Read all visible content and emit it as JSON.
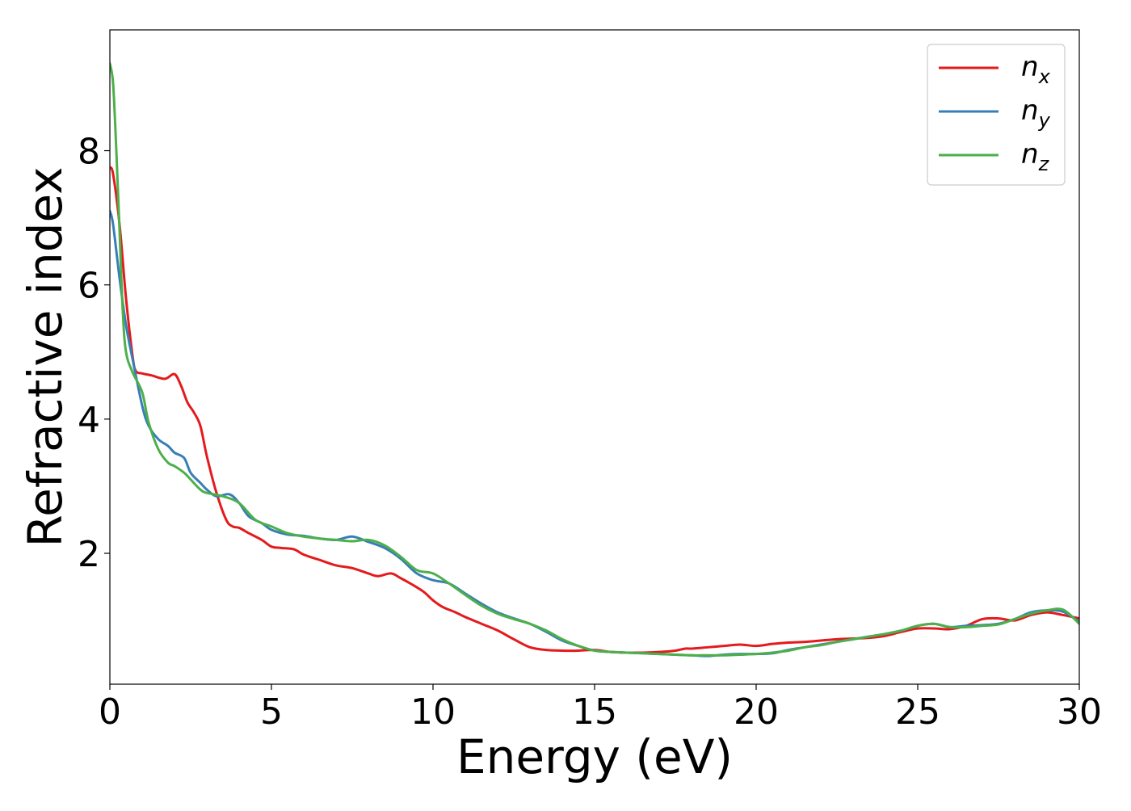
{
  "chart_data": {
    "type": "line",
    "title": "",
    "xlabel": "Energy (eV)",
    "ylabel": "Refractive index",
    "xlim": [
      0,
      30
    ],
    "ylim": [
      0.05,
      9.8
    ],
    "xticks": [
      0,
      5,
      10,
      15,
      20,
      25,
      30
    ],
    "yticks": [
      2,
      4,
      6,
      8
    ],
    "grid": false,
    "legend_position": "top-right",
    "series": [
      {
        "name": "n_x",
        "label_base": "n",
        "label_sub": "x",
        "color": "#e41a1c",
        "x": [
          0,
          0.1,
          0.3,
          0.5,
          0.7,
          0.8,
          1.0,
          1.3,
          1.7,
          2.0,
          2.2,
          2.4,
          2.6,
          2.8,
          3.0,
          3.3,
          3.6,
          3.8,
          4.0,
          4.3,
          4.7,
          5.0,
          5.3,
          5.7,
          6.0,
          6.5,
          7.0,
          7.5,
          8.0,
          8.3,
          8.7,
          9.0,
          9.3,
          9.7,
          10.0,
          10.3,
          10.7,
          11.0,
          11.5,
          12.0,
          12.5,
          13.0,
          13.5,
          14.0,
          14.5,
          15.0,
          15.5,
          16.0,
          16.5,
          17.0,
          17.5,
          17.8,
          18.0,
          18.5,
          19.0,
          19.5,
          20.0,
          20.5,
          21.0,
          21.5,
          22.0,
          22.5,
          23.0,
          23.5,
          24.0,
          24.5,
          25.0,
          25.5,
          26.0,
          26.5,
          27.0,
          27.5,
          28.0,
          28.5,
          29.0,
          29.5,
          30.0
        ],
        "y": [
          7.75,
          7.65,
          6.9,
          5.8,
          4.95,
          4.72,
          4.68,
          4.65,
          4.6,
          4.67,
          4.5,
          4.25,
          4.1,
          3.9,
          3.45,
          2.9,
          2.5,
          2.4,
          2.38,
          2.3,
          2.2,
          2.1,
          2.08,
          2.06,
          1.98,
          1.9,
          1.82,
          1.78,
          1.7,
          1.66,
          1.7,
          1.63,
          1.55,
          1.43,
          1.3,
          1.2,
          1.12,
          1.05,
          0.95,
          0.85,
          0.72,
          0.6,
          0.56,
          0.55,
          0.55,
          0.56,
          0.53,
          0.52,
          0.52,
          0.53,
          0.55,
          0.58,
          0.58,
          0.6,
          0.62,
          0.64,
          0.62,
          0.65,
          0.67,
          0.68,
          0.7,
          0.72,
          0.73,
          0.74,
          0.77,
          0.83,
          0.88,
          0.88,
          0.87,
          0.92,
          1.02,
          1.03,
          1.0,
          1.08,
          1.12,
          1.08,
          1.03
        ]
      },
      {
        "name": "n_y",
        "label_base": "n",
        "label_sub": "y",
        "color": "#377eb8",
        "x": [
          0,
          0.1,
          0.3,
          0.5,
          0.7,
          1.0,
          1.2,
          1.5,
          1.8,
          2.0,
          2.3,
          2.5,
          2.8,
          3.0,
          3.3,
          3.7,
          4.0,
          4.3,
          4.7,
          5.0,
          5.5,
          6.0,
          6.5,
          7.0,
          7.5,
          8.0,
          8.5,
          9.0,
          9.5,
          10.0,
          10.5,
          11.0,
          11.5,
          12.0,
          12.5,
          13.0,
          13.5,
          14.0,
          14.5,
          15.0,
          15.5,
          16.0,
          16.5,
          17.0,
          17.5,
          18.0,
          18.5,
          19.0,
          19.5,
          20.0,
          20.5,
          21.0,
          21.5,
          22.0,
          22.5,
          23.0,
          23.5,
          24.0,
          24.5,
          25.0,
          25.5,
          26.0,
          26.5,
          27.0,
          27.5,
          28.0,
          28.5,
          29.0,
          29.5,
          30.0
        ],
        "y": [
          7.1,
          6.9,
          6.1,
          5.4,
          4.9,
          4.2,
          3.9,
          3.7,
          3.6,
          3.5,
          3.42,
          3.2,
          3.05,
          2.95,
          2.85,
          2.88,
          2.75,
          2.55,
          2.45,
          2.35,
          2.28,
          2.26,
          2.22,
          2.2,
          2.25,
          2.17,
          2.08,
          1.92,
          1.7,
          1.6,
          1.55,
          1.4,
          1.25,
          1.12,
          1.03,
          0.95,
          0.83,
          0.7,
          0.62,
          0.55,
          0.53,
          0.52,
          0.51,
          0.5,
          0.49,
          0.48,
          0.47,
          0.49,
          0.5,
          0.5,
          0.51,
          0.56,
          0.6,
          0.64,
          0.68,
          0.72,
          0.76,
          0.8,
          0.85,
          0.92,
          0.95,
          0.9,
          0.92,
          0.93,
          0.95,
          1.02,
          1.12,
          1.15,
          1.13,
          0.98
        ]
      },
      {
        "name": "n_z",
        "label_base": "n",
        "label_sub": "z",
        "color": "#4daf4a",
        "x": [
          0,
          0.1,
          0.2,
          0.3,
          0.4,
          0.5,
          0.7,
          1.0,
          1.2,
          1.5,
          1.8,
          2.0,
          2.3,
          2.5,
          2.8,
          3.0,
          3.5,
          4.0,
          4.5,
          5.0,
          5.5,
          6.0,
          6.5,
          7.0,
          7.5,
          8.0,
          8.5,
          9.0,
          9.5,
          10.0,
          10.5,
          11.0,
          11.5,
          12.0,
          12.5,
          13.0,
          13.5,
          14.0,
          14.5,
          15.0,
          15.5,
          16.0,
          16.5,
          17.0,
          17.5,
          18.0,
          18.5,
          19.0,
          19.5,
          20.0,
          20.5,
          21.0,
          21.5,
          22.0,
          22.5,
          23.0,
          23.5,
          24.0,
          24.5,
          25.0,
          25.5,
          26.0,
          26.5,
          27.0,
          27.5,
          28.0,
          28.5,
          29.0,
          29.5,
          30.0
        ],
        "y": [
          9.3,
          9.0,
          8.0,
          6.8,
          5.6,
          5.0,
          4.7,
          4.4,
          3.95,
          3.55,
          3.35,
          3.3,
          3.2,
          3.1,
          2.95,
          2.9,
          2.85,
          2.75,
          2.5,
          2.4,
          2.3,
          2.25,
          2.22,
          2.2,
          2.18,
          2.2,
          2.12,
          1.95,
          1.75,
          1.7,
          1.55,
          1.38,
          1.22,
          1.1,
          1.02,
          0.95,
          0.85,
          0.72,
          0.62,
          0.55,
          0.53,
          0.52,
          0.51,
          0.5,
          0.49,
          0.48,
          0.48,
          0.48,
          0.49,
          0.5,
          0.52,
          0.55,
          0.6,
          0.63,
          0.68,
          0.72,
          0.76,
          0.8,
          0.85,
          0.92,
          0.95,
          0.9,
          0.9,
          0.92,
          0.94,
          1.02,
          1.1,
          1.15,
          1.16,
          0.95
        ]
      }
    ]
  }
}
